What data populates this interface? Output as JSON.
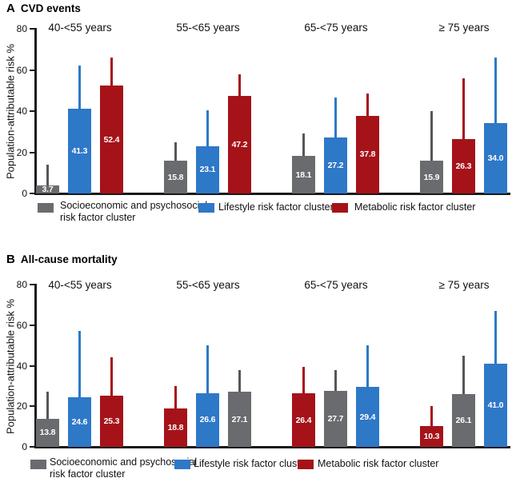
{
  "figure_bg": "#ffffff",
  "colors": {
    "socioeconomic": "#6A6B6E",
    "lifestyle": "#2E78C8",
    "metabolic": "#A51319",
    "socioeconomic_error": "#56575A",
    "axis": "#1a1a1a",
    "value_label": "#ffffff"
  },
  "legend": {
    "position": "bottom",
    "items": [
      {
        "key": "socioeconomic",
        "lines": [
          "Socioeconomic and psychosocial",
          "risk factor cluster"
        ]
      },
      {
        "key": "lifestyle",
        "lines": [
          "Lifestyle risk factor cluster"
        ]
      },
      {
        "key": "metabolic",
        "lines": [
          "Metabolic risk factor cluster"
        ]
      }
    ]
  },
  "chart_data": [
    {
      "id": "A",
      "type": "bar",
      "panel_letter": "A",
      "title": "CVD events",
      "ylabel": "Population-attributable risk %",
      "ylim": [
        0,
        80
      ],
      "yticks": [
        0,
        20,
        40,
        60,
        80
      ],
      "grid": false,
      "error_bars": "upper_only",
      "groups": [
        {
          "label": "40-<55 years",
          "bars": [
            {
              "cluster": "socioeconomic",
              "value": 3.7,
              "label": "3.7",
              "upper": 14
            },
            {
              "cluster": "lifestyle",
              "value": 41.3,
              "label": "41.3",
              "upper": 62
            },
            {
              "cluster": "metabolic",
              "value": 52.4,
              "label": "52.4",
              "upper": 66
            }
          ]
        },
        {
          "label": "55-<65 years",
          "bars": [
            {
              "cluster": "socioeconomic",
              "value": 15.8,
              "label": "15.8",
              "upper": 25
            },
            {
              "cluster": "lifestyle",
              "value": 23.1,
              "label": "23.1",
              "upper": 40.5
            },
            {
              "cluster": "metabolic",
              "value": 47.2,
              "label": "47.2",
              "upper": 58
            }
          ]
        },
        {
          "label": "65-<75 years",
          "bars": [
            {
              "cluster": "socioeconomic",
              "value": 18.1,
              "label": "18.1",
              "upper": 29
            },
            {
              "cluster": "lifestyle",
              "value": 27.2,
              "label": "27.2",
              "upper": 46.5
            },
            {
              "cluster": "metabolic",
              "value": 37.8,
              "label": "37.8",
              "upper": 48.5
            }
          ]
        },
        {
          "label": "≥ 75 years",
          "bars": [
            {
              "cluster": "socioeconomic",
              "value": 15.9,
              "label": "15.9",
              "upper": 40
            },
            {
              "cluster": "metabolic",
              "value": 26.3,
              "label": "26.3",
              "upper": 56
            },
            {
              "cluster": "lifestyle",
              "value": 34.0,
              "label": "34.0",
              "upper": 66
            }
          ]
        }
      ]
    },
    {
      "id": "B",
      "type": "bar",
      "panel_letter": "B",
      "title": "All-cause mortality",
      "ylabel": "Population-attributable risk %",
      "ylim": [
        0,
        80
      ],
      "yticks": [
        0,
        20,
        40,
        60,
        80
      ],
      "grid": false,
      "error_bars": "upper_only",
      "groups": [
        {
          "label": "40-<55 years",
          "bars": [
            {
              "cluster": "socioeconomic",
              "value": 13.8,
              "label": "13.8",
              "upper": 27
            },
            {
              "cluster": "lifestyle",
              "value": 24.6,
              "label": "24.6",
              "upper": 57
            },
            {
              "cluster": "metabolic",
              "value": 25.3,
              "label": "25.3",
              "upper": 44
            }
          ]
        },
        {
          "label": "55-<65 years",
          "bars": [
            {
              "cluster": "metabolic",
              "value": 18.8,
              "label": "18.8",
              "upper": 30
            },
            {
              "cluster": "lifestyle",
              "value": 26.6,
              "label": "26.6",
              "upper": 50
            },
            {
              "cluster": "socioeconomic",
              "value": 27.1,
              "label": "27.1",
              "upper": 38
            }
          ]
        },
        {
          "label": "65-<75 years",
          "bars": [
            {
              "cluster": "metabolic",
              "value": 26.4,
              "label": "26.4",
              "upper": 39.5
            },
            {
              "cluster": "socioeconomic",
              "value": 27.7,
              "label": "27.7",
              "upper": 38
            },
            {
              "cluster": "lifestyle",
              "value": 29.4,
              "label": "29.4",
              "upper": 50
            }
          ]
        },
        {
          "label": "≥ 75 years",
          "bars": [
            {
              "cluster": "metabolic",
              "value": 10.3,
              "label": "10.3",
              "upper": 20
            },
            {
              "cluster": "socioeconomic",
              "value": 26.1,
              "label": "26.1",
              "upper": 45
            },
            {
              "cluster": "lifestyle",
              "value": 41.0,
              "label": "41.0",
              "upper": 67
            }
          ]
        }
      ]
    }
  ]
}
